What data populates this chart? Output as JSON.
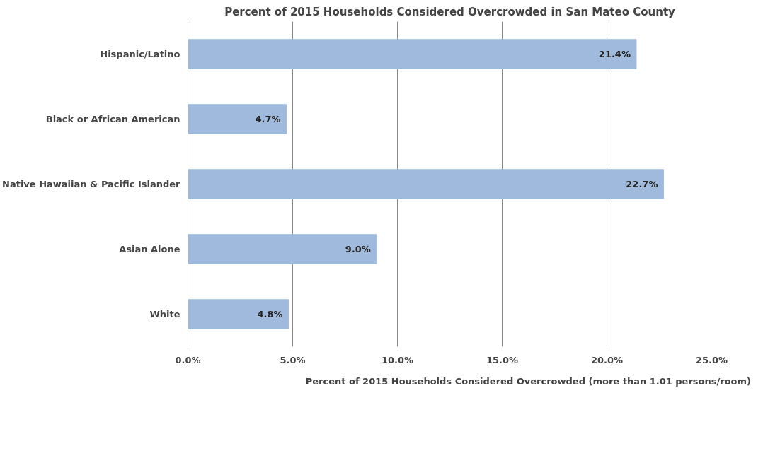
{
  "chart_data": {
    "type": "bar",
    "orientation": "horizontal",
    "title": "Percent of 2015 Households Considered Overcrowded in San Mateo County",
    "categories": [
      "Hispanic/Latino",
      "Black or African American",
      "Native Hawaiian & Pacific Islander",
      "Asian Alone",
      "White"
    ],
    "series": [
      {
        "name": "Percent of 2015 Households Considered Overcrowded (more than 1.01 persons/room)",
        "color": "#9fbadc",
        "values": [
          21.4,
          4.7,
          22.7,
          9.0,
          4.8
        ],
        "value_labels": [
          "21.4%",
          "4.7%",
          "22.7%",
          "9.0%",
          "4.8%"
        ]
      }
    ],
    "xlim": [
      0,
      25
    ],
    "xticks": [
      {
        "value": 0,
        "label": "0.0%"
      },
      {
        "value": 5,
        "label": "5.0%"
      },
      {
        "value": 10,
        "label": "10.0%"
      },
      {
        "value": 15,
        "label": "15.0%"
      },
      {
        "value": 20,
        "label": "20.0%"
      },
      {
        "value": 25,
        "label": "25.0%"
      }
    ],
    "grid": "x",
    "legend": "bottom"
  }
}
